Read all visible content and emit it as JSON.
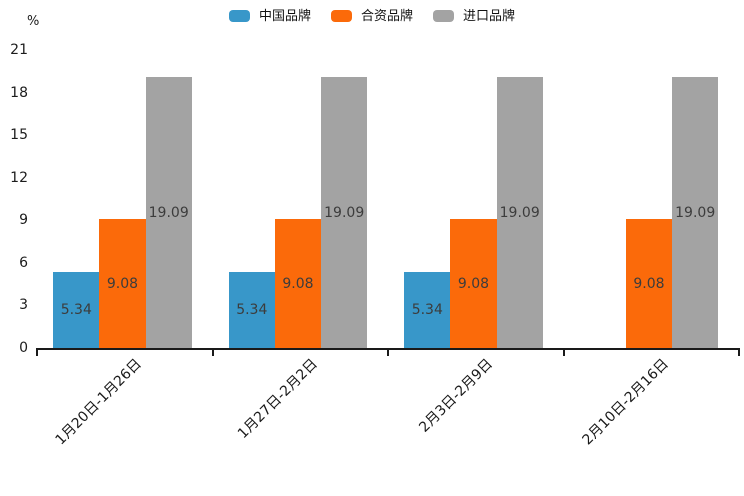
{
  "chart_data": {
    "type": "bar",
    "title": "",
    "unit_label": "%",
    "categories": [
      "1月20日-1月26日",
      "1月27日-2月2日",
      "2月3日-2月9日",
      "2月10日-2月16日"
    ],
    "series": [
      {
        "name": "中国品牌",
        "color": "#3897C9",
        "values": [
          5.34,
          5.34,
          5.34,
          null
        ]
      },
      {
        "name": "合资品牌",
        "color": "#FB6A0A",
        "values": [
          9.08,
          9.08,
          9.08,
          9.08
        ]
      },
      {
        "name": "进口品牌",
        "color": "#A3A3A3",
        "values": [
          19.09,
          19.09,
          19.09,
          19.09
        ]
      }
    ],
    "y_axis": {
      "min": 0,
      "max": 21,
      "ticks": [
        0,
        3,
        6,
        9,
        12,
        15,
        18,
        21
      ]
    },
    "legend_position": "top",
    "grid": false,
    "bar_labels_visible": true,
    "bar_label_format": "2-decimals",
    "axis_color": "#1a1a1a",
    "label_text_color": "#3c3c3c"
  }
}
